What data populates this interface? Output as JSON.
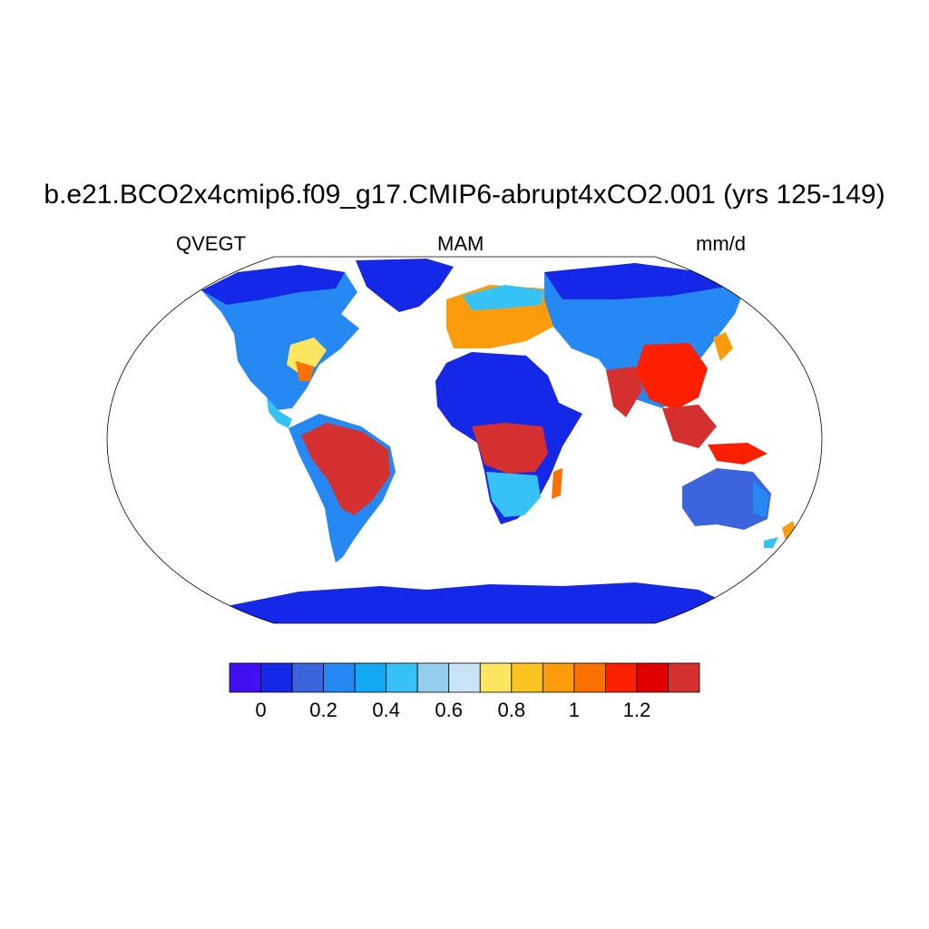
{
  "title": "b.e21.BCO2x4cmip6.f09_g17.CMIP6-abrupt4xCO2.001 (yrs 125-149)",
  "subtitle_left": "QVEGT",
  "subtitle_center": "MAM",
  "subtitle_right": "mm/d",
  "colorbar": {
    "colors": [
      "#4010f2",
      "#1528e8",
      "#3c64dc",
      "#2688f2",
      "#12a8f4",
      "#36c2f4",
      "#94cdee",
      "#c8e4f6",
      "#fce660",
      "#fcc420",
      "#fc9c0c",
      "#fc7000",
      "#fc2000",
      "#e00000",
      "#d43030"
    ],
    "tick_labels": [
      "0",
      "0.2",
      "0.4",
      "0.6",
      "0.8",
      "1",
      "1.2"
    ]
  }
}
